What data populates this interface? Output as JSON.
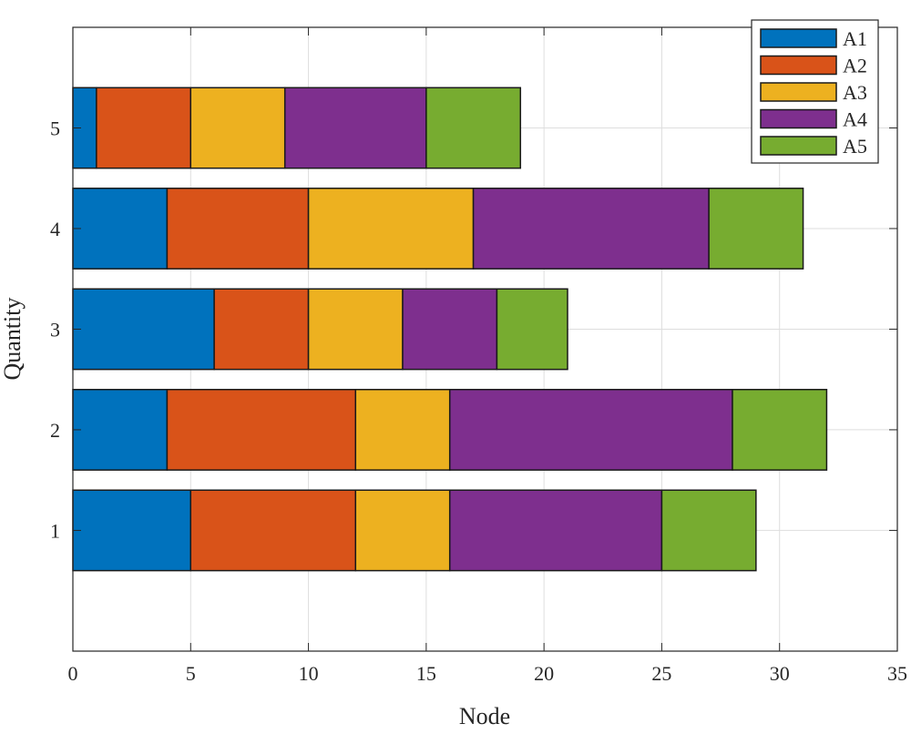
{
  "chart_data": {
    "type": "bar",
    "orientation": "horizontal",
    "stacked": true,
    "xlabel": "Node",
    "ylabel": "Quantity",
    "xlim": [
      0,
      35
    ],
    "ylim": [
      -0.2,
      6
    ],
    "xticks": [
      "0",
      "5",
      "10",
      "15",
      "20",
      "25",
      "30",
      "35"
    ],
    "yticks": [
      "1",
      "2",
      "3",
      "4",
      "5"
    ],
    "grid": true,
    "legend_position": "top-right",
    "categories": [
      1,
      2,
      3,
      4,
      5
    ],
    "series": [
      {
        "name": "A1",
        "color": "#0072BD",
        "values": [
          5,
          4,
          6,
          4,
          1
        ]
      },
      {
        "name": "A2",
        "color": "#D95319",
        "values": [
          7,
          8,
          4,
          6,
          4
        ]
      },
      {
        "name": "A3",
        "color": "#EDB120",
        "values": [
          4,
          4,
          4,
          7,
          4
        ]
      },
      {
        "name": "A4",
        "color": "#7E2F8E",
        "values": [
          9,
          12,
          4,
          10,
          6
        ]
      },
      {
        "name": "A5",
        "color": "#77AC30",
        "values": [
          4,
          4,
          3,
          4,
          4
        ]
      }
    ]
  }
}
